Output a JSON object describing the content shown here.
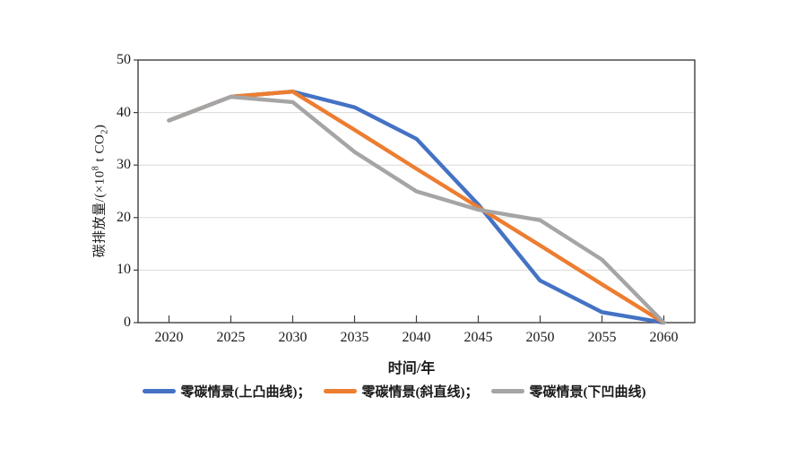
{
  "chart_data": {
    "type": "line",
    "title": "",
    "xlabel": "时间/年",
    "ylabel": "碳排放量/(×10⁸ t CO₂)",
    "ylabel_parts": {
      "prefix": "碳排放量/(×10",
      "sup": "8",
      "mid": " t CO",
      "sub": "2",
      "suffix": ")"
    },
    "categories": [
      "2020",
      "2025",
      "2030",
      "2035",
      "2040",
      "2045",
      "2050",
      "2055",
      "2060"
    ],
    "y_ticks": [
      0,
      10,
      20,
      30,
      40,
      50
    ],
    "ylim": [
      0,
      50
    ],
    "grid": "horizontal-only",
    "legend_position": "bottom",
    "plot_border": true,
    "series": [
      {
        "id": "convex",
        "name": "零碳情景(上凸曲线)",
        "legend_label": "零碳情景(上凸曲线)；",
        "color": "#4472C4",
        "values": [
          38.5,
          43,
          44,
          41,
          35,
          22.5,
          8,
          2,
          0
        ]
      },
      {
        "id": "straight",
        "name": "零碳情景(斜直线)",
        "legend_label": "零碳情景(斜直线)；",
        "color": "#ED7D31",
        "values": [
          38.5,
          43,
          44,
          36.7,
          29.3,
          22,
          14.7,
          7.3,
          0
        ]
      },
      {
        "id": "concave",
        "name": "零碳情景(下凹曲线)",
        "legend_label": "零碳情景(下凹曲线)",
        "color": "#A5A5A5",
        "values": [
          38.5,
          43,
          42,
          32.5,
          25,
          21.5,
          19.5,
          12,
          0
        ]
      }
    ],
    "colors": {
      "axis": "#3f3f3f",
      "grid": "#d9d9d9",
      "background": "#ffffff",
      "text": "#1a1a1a"
    }
  }
}
